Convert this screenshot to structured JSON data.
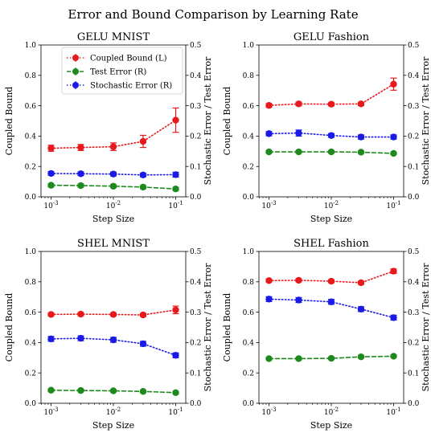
{
  "title": "Error and Bound Comparison by Learning Rate",
  "colors": {
    "coupled": "#e8191c",
    "test": "#1e8a1e",
    "stochastic": "#1a1ae6"
  },
  "chart_data": [
    {
      "type": "line",
      "title": "GELU MNIST",
      "xlabel": "Step Size",
      "ylabel_left": "Coupled Bound",
      "ylabel_right": "Stochastic Error / Test Error",
      "xscale": "log",
      "x": [
        0.001,
        0.003,
        0.01,
        0.03,
        0.1
      ],
      "xticks": [
        "10^-3",
        "10^-2",
        "10^-1"
      ],
      "ylim_left": [
        0.0,
        1.0
      ],
      "yticks_left": [
        "0.0",
        "0.2",
        "0.4",
        "0.6",
        "0.8",
        "1.0"
      ],
      "ylim_right": [
        0.0,
        0.5
      ],
      "yticks_right": [
        "0.0",
        "0.1",
        "0.2",
        "0.3",
        "0.4",
        "0.5"
      ],
      "legend": true,
      "legend_position": "top-right",
      "series": [
        {
          "name": "Coupled Bound (L)",
          "axis": "left",
          "style": "dotted",
          "color": "#e8191c",
          "values": [
            0.32,
            0.325,
            0.33,
            0.365,
            0.505
          ],
          "err": [
            0.02,
            0.02,
            0.025,
            0.04,
            0.08
          ]
        },
        {
          "name": "Test Error (R)",
          "axis": "right",
          "style": "dashed",
          "color": "#1e8a1e",
          "values": [
            0.038,
            0.037,
            0.035,
            0.032,
            0.026
          ],
          "err": [
            0.005,
            0.005,
            0.005,
            0.005,
            0.005
          ]
        },
        {
          "name": "Stochastic Error (R)",
          "axis": "right",
          "style": "dotted",
          "color": "#1a1ae6",
          "values": [
            0.077,
            0.076,
            0.075,
            0.072,
            0.073
          ],
          "err": [
            0.006,
            0.006,
            0.006,
            0.006,
            0.008
          ]
        }
      ]
    },
    {
      "type": "line",
      "title": "GELU Fashion",
      "xlabel": "Step Size",
      "ylabel_left": "Coupled Bound",
      "ylabel_right": "Stochastic Error / Test Error",
      "xscale": "log",
      "x": [
        0.001,
        0.003,
        0.01,
        0.03,
        0.1
      ],
      "xticks": [
        "10^-3",
        "10^-2",
        "10^-1"
      ],
      "ylim_left": [
        0.0,
        1.0
      ],
      "yticks_left": [
        "0.0",
        "0.2",
        "0.4",
        "0.6",
        "0.8",
        "1.0"
      ],
      "ylim_right": [
        0.0,
        0.5
      ],
      "yticks_right": [
        "0.0",
        "0.1",
        "0.2",
        "0.3",
        "0.4",
        "0.5"
      ],
      "legend": false,
      "series": [
        {
          "name": "Coupled Bound (L)",
          "axis": "left",
          "style": "dotted",
          "color": "#e8191c",
          "values": [
            0.602,
            0.612,
            0.61,
            0.612,
            0.742
          ],
          "err": [
            0.012,
            0.012,
            0.01,
            0.01,
            0.04
          ]
        },
        {
          "name": "Test Error (R)",
          "axis": "right",
          "style": "dashed",
          "color": "#1e8a1e",
          "values": [
            0.148,
            0.148,
            0.148,
            0.147,
            0.143
          ],
          "err": [
            0.004,
            0.004,
            0.004,
            0.004,
            0.004
          ]
        },
        {
          "name": "Stochastic Error (R)",
          "axis": "right",
          "style": "dotted",
          "color": "#1a1ae6",
          "values": [
            0.208,
            0.21,
            0.202,
            0.197,
            0.197
          ],
          "err": [
            0.007,
            0.01,
            0.006,
            0.007,
            0.007
          ]
        }
      ]
    },
    {
      "type": "line",
      "title": "SHEL MNIST",
      "xlabel": "Step Size",
      "ylabel_left": "Coupled Bound",
      "ylabel_right": "Stochastic Error / Test Error",
      "xscale": "log",
      "x": [
        0.001,
        0.003,
        0.01,
        0.03,
        0.1
      ],
      "xticks": [
        "10^-3",
        "10^-2",
        "10^-1"
      ],
      "ylim_left": [
        0.0,
        1.0
      ],
      "yticks_left": [
        "0.0",
        "0.2",
        "0.4",
        "0.6",
        "0.8",
        "1.0"
      ],
      "ylim_right": [
        0.0,
        0.5
      ],
      "yticks_right": [
        "0.0",
        "0.1",
        "0.2",
        "0.3",
        "0.4",
        "0.5"
      ],
      "legend": false,
      "series": [
        {
          "name": "Coupled Bound (L)",
          "axis": "left",
          "style": "dotted",
          "color": "#e8191c",
          "values": [
            0.585,
            0.587,
            0.585,
            0.582,
            0.615
          ],
          "err": [
            0.01,
            0.01,
            0.01,
            0.01,
            0.025
          ]
        },
        {
          "name": "Test Error (R)",
          "axis": "right",
          "style": "dashed",
          "color": "#1e8a1e",
          "values": [
            0.043,
            0.042,
            0.041,
            0.039,
            0.035
          ],
          "err": [
            0.004,
            0.004,
            0.004,
            0.004,
            0.004
          ]
        },
        {
          "name": "Stochastic Error (R)",
          "axis": "right",
          "style": "dotted",
          "color": "#1a1ae6",
          "values": [
            0.212,
            0.214,
            0.209,
            0.196,
            0.158
          ],
          "err": [
            0.008,
            0.008,
            0.008,
            0.008,
            0.008
          ]
        }
      ]
    },
    {
      "type": "line",
      "title": "SHEL Fashion",
      "xlabel": "Step Size",
      "ylabel_left": "Coupled Bound",
      "ylabel_right": "Stochastic Error / Test Error",
      "xscale": "log",
      "x": [
        0.001,
        0.003,
        0.01,
        0.03,
        0.1
      ],
      "xticks": [
        "10^-3",
        "10^-2",
        "10^-1"
      ],
      "ylim_left": [
        0.0,
        1.0
      ],
      "yticks_left": [
        "0.0",
        "0.2",
        "0.4",
        "0.6",
        "0.8",
        "1.0"
      ],
      "ylim_right": [
        0.0,
        0.5
      ],
      "yticks_right": [
        "0.0",
        "0.1",
        "0.2",
        "0.3",
        "0.4",
        "0.5"
      ],
      "legend": false,
      "series": [
        {
          "name": "Coupled Bound (L)",
          "axis": "left",
          "style": "dotted",
          "color": "#e8191c",
          "values": [
            0.808,
            0.81,
            0.804,
            0.794,
            0.87
          ],
          "err": [
            0.01,
            0.01,
            0.01,
            0.01,
            0.015
          ]
        },
        {
          "name": "Test Error (R)",
          "axis": "right",
          "style": "dashed",
          "color": "#1e8a1e",
          "values": [
            0.147,
            0.147,
            0.148,
            0.153,
            0.155
          ],
          "err": [
            0.004,
            0.004,
            0.004,
            0.004,
            0.004
          ]
        },
        {
          "name": "Stochastic Error (R)",
          "axis": "right",
          "style": "dotted",
          "color": "#1a1ae6",
          "values": [
            0.343,
            0.34,
            0.334,
            0.31,
            0.282
          ],
          "err": [
            0.008,
            0.008,
            0.008,
            0.008,
            0.008
          ]
        }
      ]
    }
  ]
}
